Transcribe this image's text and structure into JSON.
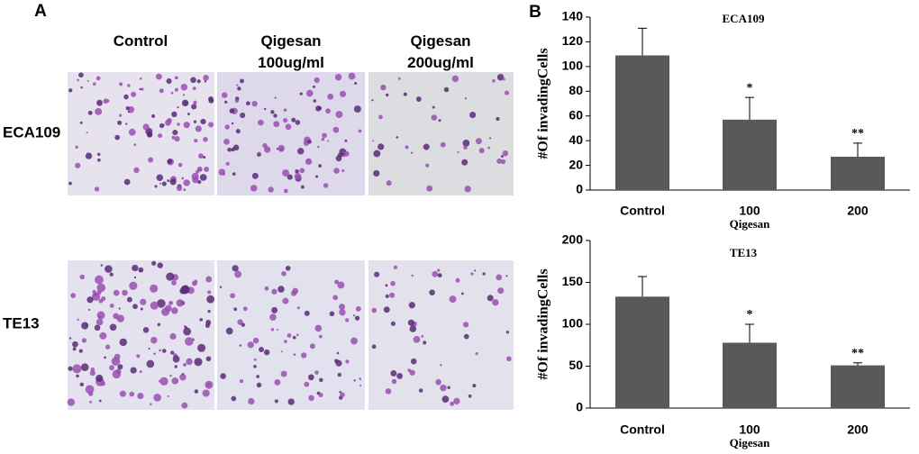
{
  "panel_a": {
    "label": "A",
    "columns": [
      "Control",
      "Qigesan\n100ug/ml",
      "Qigesan\n200ug/ml"
    ],
    "rows": [
      "ECA109",
      "TE13"
    ]
  },
  "panel_b_label": "B",
  "chart_data": [
    {
      "type": "bar",
      "title": "ECA109",
      "categories": [
        "Control",
        "100",
        "200"
      ],
      "values": [
        109,
        57,
        27
      ],
      "errors": [
        22,
        18,
        11
      ],
      "color": "#595959",
      "ylim": [
        0,
        140
      ],
      "yticks": [
        0,
        20,
        40,
        60,
        80,
        100,
        120,
        140
      ],
      "ylabel": "#Of invadingCells",
      "xlabel": "Qigesan",
      "annotations": [
        {
          "x": "100",
          "text": "*"
        },
        {
          "x": "200",
          "text": "**"
        }
      ]
    },
    {
      "type": "bar",
      "title": "TE13",
      "categories": [
        "Control",
        "100",
        "200"
      ],
      "values": [
        133,
        78,
        51
      ],
      "errors": [
        24,
        22,
        3
      ],
      "color": "#595959",
      "ylim": [
        0,
        200
      ],
      "yticks": [
        0,
        50,
        100,
        150,
        200
      ],
      "ylabel": "#Of invadingCells",
      "xlabel": "Qigesan",
      "annotations": [
        {
          "x": "100",
          "text": "*"
        },
        {
          "x": "200",
          "text": "**"
        }
      ]
    }
  ]
}
